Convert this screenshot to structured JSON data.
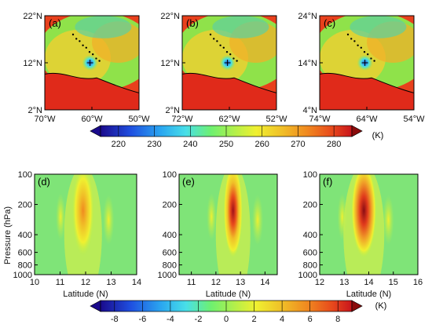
{
  "chart_data": [
    {
      "type": "heatmap",
      "panel": "(a)",
      "xlabels": [
        "70°W",
        "60°W",
        "50°W"
      ],
      "ylabels": [
        "22°N",
        "12°N",
        "2°N"
      ],
      "feature": "cold cloud-top core near 12°N, 60°W"
    },
    {
      "type": "heatmap",
      "panel": "(b)",
      "xlabels": [
        "72°W",
        "62°W",
        "52°W"
      ],
      "ylabels": [
        "22°N",
        "12°N",
        "2°N"
      ],
      "feature": "cold cloud-top core near 12°N, 62°W"
    },
    {
      "type": "heatmap",
      "panel": "(c)",
      "xlabels": [
        "74°W",
        "64°W",
        "54°W"
      ],
      "ylabels": [
        "24°N",
        "14°N",
        "4°N"
      ],
      "feature": "cold cloud-top core near 14°N, 64°W"
    },
    {
      "type": "heatmap",
      "panel": "(d)",
      "xlabel": "Latitude (N)",
      "ylabel": "Pressure (hPa)",
      "xticks": [
        "10",
        "11",
        "12",
        "13",
        "14"
      ],
      "yticks": [
        "100",
        "200",
        "400",
        "600",
        "800",
        "1000"
      ],
      "max_anomaly_lat": 11.9,
      "max_anomaly_value": 4
    },
    {
      "type": "heatmap",
      "panel": "(e)",
      "xlabel": "Latitude (N)",
      "xticks": [
        "11",
        "12",
        "13",
        "14"
      ],
      "yticks": [
        "100",
        "200",
        "400",
        "600",
        "800",
        "1000"
      ],
      "max_anomaly_lat": 12.7,
      "max_anomaly_value": 7
    },
    {
      "type": "heatmap",
      "panel": "(f)",
      "xlabel": "Latitude (N)",
      "xticks": [
        "12",
        "13",
        "14",
        "15",
        "16"
      ],
      "yticks": [
        "100",
        "200",
        "400",
        "600",
        "800",
        "1000"
      ],
      "max_anomaly_lat": 13.8,
      "max_anomaly_value": 7.5
    }
  ],
  "colorbar_top": {
    "ticks": [
      "220",
      "230",
      "240",
      "250",
      "260",
      "270",
      "280"
    ],
    "unit": "(K)"
  },
  "colorbar_bottom": {
    "ticks": [
      "-8",
      "-6",
      "-4",
      "-2",
      "0",
      "2",
      "4",
      "6",
      "8"
    ],
    "unit": "(K)"
  },
  "palette": [
    "#1a0a8c",
    "#1f4fe0",
    "#2aa6f0",
    "#48dfe8",
    "#5ef0b0",
    "#6ef070",
    "#b8f048",
    "#f0f030",
    "#f0c028",
    "#f08a20",
    "#e84a1c",
    "#c8141c",
    "#700a0a"
  ]
}
